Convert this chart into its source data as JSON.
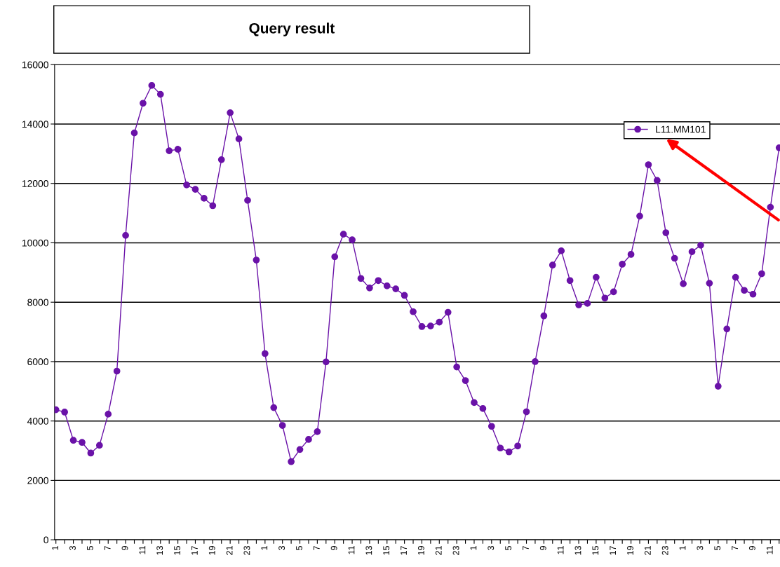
{
  "chart_data": {
    "type": "line",
    "title": "Query result",
    "categories": [
      "1",
      null,
      "3",
      null,
      "5",
      null,
      "7",
      null,
      "9",
      null,
      "11",
      null,
      "13",
      null,
      "15",
      null,
      "17",
      null,
      "19",
      null,
      "21",
      null,
      "23",
      null,
      "1",
      null,
      "3",
      null,
      "5",
      null,
      "7",
      null,
      "9",
      null,
      "11",
      null,
      "13",
      null,
      "15",
      null,
      "17",
      null,
      "19",
      null,
      "21",
      null,
      "23",
      null,
      "1",
      null,
      "3",
      null,
      "5",
      null,
      "7",
      null,
      "9",
      null,
      "11",
      null,
      "13",
      null,
      "15",
      null,
      "17",
      null,
      "19",
      null,
      "21",
      null,
      "23",
      null,
      "1",
      null,
      "3",
      null,
      "5",
      null,
      "7",
      null,
      "9",
      null,
      "11",
      null
    ],
    "series": [
      {
        "name": "L11.MM101",
        "color": "#6a12a8",
        "values": [
          4380,
          4300,
          3350,
          3280,
          2920,
          3180,
          4230,
          5680,
          10250,
          13700,
          14700,
          15300,
          15000,
          13100,
          13150,
          11950,
          11800,
          11500,
          11250,
          12800,
          14380,
          13500,
          11430,
          9420,
          6270,
          4450,
          3850,
          2630,
          3040,
          3380,
          3640,
          5990,
          9530,
          10290,
          10100,
          8800,
          8480,
          8730,
          8550,
          8450,
          8230,
          7680,
          7180,
          7200,
          7330,
          7660,
          5820,
          5360,
          4620,
          4420,
          3820,
          3090,
          2960,
          3160,
          4310,
          6000,
          7540,
          9250,
          9730,
          8730,
          7910,
          7960,
          8840,
          8140,
          8350,
          9280,
          9610,
          10900,
          12630,
          12100,
          10340,
          9480,
          8620,
          9700,
          9920,
          8640,
          5170,
          7100,
          8840,
          8400,
          8270,
          8960,
          11200,
          13200
        ]
      }
    ],
    "ylim": [
      0,
      16000
    ],
    "yticks": [
      0,
      2000,
      4000,
      6000,
      8000,
      10000,
      12000,
      14000,
      16000
    ],
    "grid": "y",
    "legend": "top right",
    "marker": "circle",
    "line_style": "solid"
  }
}
